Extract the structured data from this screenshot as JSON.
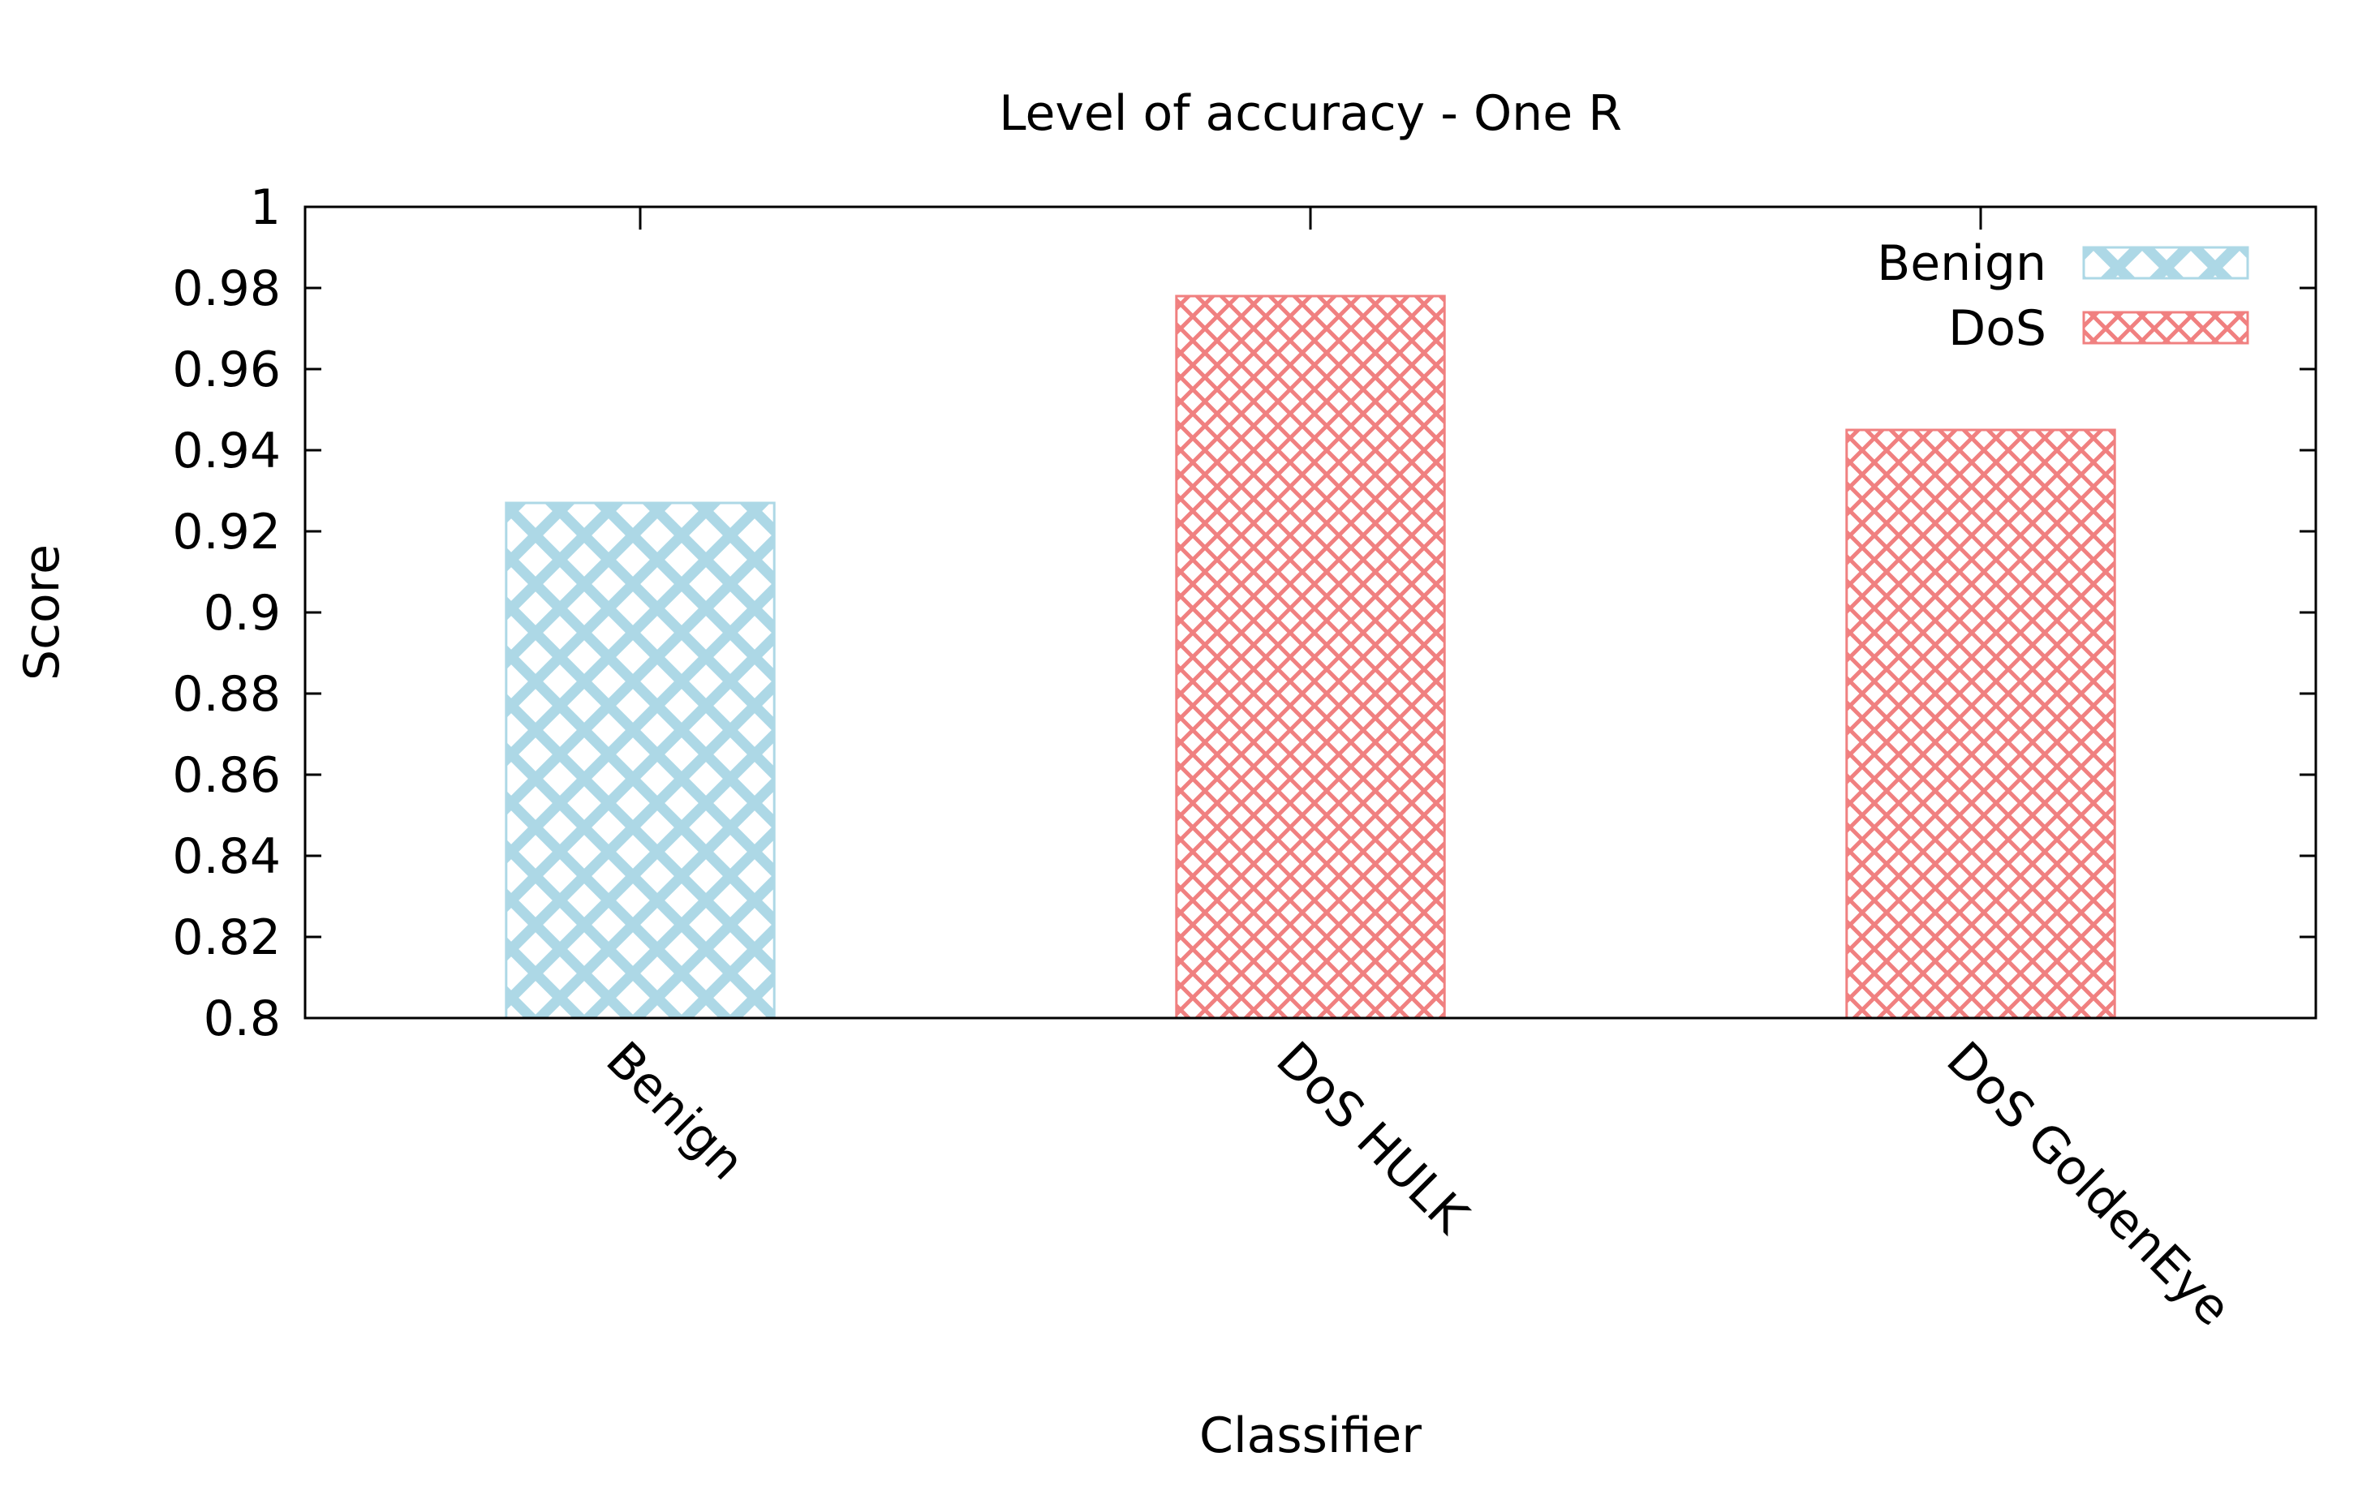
{
  "chart_data": {
    "type": "bar",
    "title": "Level of accuracy - One R",
    "xlabel": "Classifier",
    "ylabel": "Score",
    "ylim": [
      0.8,
      1.0
    ],
    "yticks": [
      "0.8",
      "0.82",
      "0.84",
      "0.86",
      "0.88",
      "0.9",
      "0.92",
      "0.94",
      "0.96",
      "0.98",
      "1"
    ],
    "categories": [
      "Benign",
      "DoS HULK",
      "DoS GoldenEye"
    ],
    "values": [
      0.927,
      0.978,
      0.945
    ],
    "bar_groups": [
      "Benign",
      "DoS",
      "DoS"
    ],
    "legend": {
      "position": "top-right",
      "entries": [
        {
          "name": "Benign",
          "color": "#add8e6"
        },
        {
          "name": "DoS",
          "color": "#f08080"
        }
      ]
    },
    "grid": false
  }
}
